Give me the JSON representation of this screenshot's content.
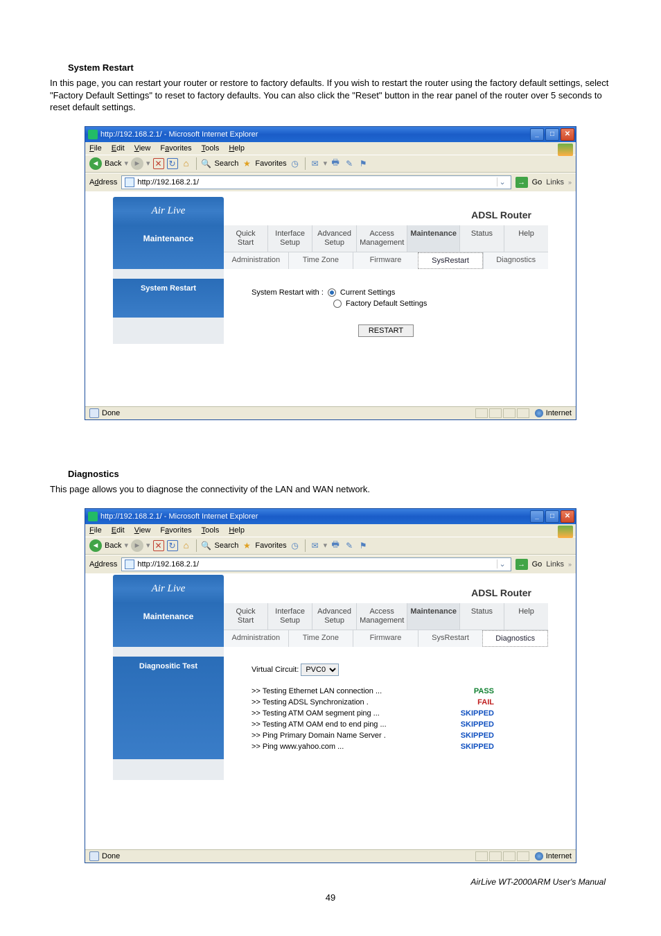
{
  "doc": {
    "section1_title": "System Restart",
    "section1_body": "In this page, you can restart your router or restore to factory defaults. If you wish to restart the router using the factory default settings, select \"Factory Default Settings\" to reset to factory defaults. You can also click the \"Reset\" button in the rear panel of the router over 5 seconds to reset default settings.",
    "section2_title": "Diagnostics",
    "section2_body": "This page allows you to diagnose the connectivity of the LAN and WAN network.",
    "footer": "AirLive WT-2000ARM User's Manual",
    "page_number": "49"
  },
  "ie": {
    "title": "http://192.168.2.1/ - Microsoft Internet Explorer",
    "menu": {
      "file": "File",
      "edit": "Edit",
      "view": "View",
      "favorites": "Favorites",
      "tools": "Tools",
      "help": "Help"
    },
    "toolbar": {
      "back": "Back",
      "search": "Search",
      "favorites": "Favorites"
    },
    "address_label": "Address",
    "address_value": "http://192.168.2.1/",
    "go": "Go",
    "links": "Links",
    "status_done": "Done",
    "status_zone": "Internet"
  },
  "router": {
    "brand": "Air Live",
    "device": "ADSL Router",
    "sidebar": "Maintenance",
    "tabs": {
      "quick_start": "Quick\nStart",
      "interface_setup": "Interface\nSetup",
      "advanced_setup": "Advanced\nSetup",
      "access_mgmt": "Access\nManagement",
      "maintenance": "Maintenance",
      "status": "Status",
      "help": "Help"
    },
    "subtabs": {
      "administration": "Administration",
      "time_zone": "Time Zone",
      "firmware": "Firmware",
      "sysrestart": "SysRestart",
      "diagnostics": "Diagnostics"
    }
  },
  "sysrestart": {
    "side_label": "System Restart",
    "label": "System Restart with :",
    "opt_current": "Current Settings",
    "opt_factory": "Factory Default Settings",
    "restart_btn": "RESTART"
  },
  "diagnostics": {
    "side_label": "Diagnositic Test",
    "vc_label": "Virtual Circuit:",
    "vc_value": "PVC0",
    "tests": [
      {
        "name": ">> Testing Ethernet LAN connection ...",
        "result": "PASS",
        "cls": "pass"
      },
      {
        "name": ">> Testing ADSL Synchronization .",
        "result": "FAIL",
        "cls": "fail"
      },
      {
        "name": ">> Testing ATM OAM segment ping ...",
        "result": "SKIPPED",
        "cls": "skipped"
      },
      {
        "name": ">> Testing ATM OAM end to end ping ...",
        "result": "SKIPPED",
        "cls": "skipped"
      },
      {
        "name": ">> Ping Primary Domain Name Server .",
        "result": "SKIPPED",
        "cls": "skipped"
      },
      {
        "name": ">> Ping www.yahoo.com ...",
        "result": "SKIPPED",
        "cls": "skipped"
      }
    ]
  },
  "colors": {
    "ie_title_bg": "#2a6dd0",
    "brand_bg": "#2f74c0",
    "pass": "#108030",
    "fail": "#c02020",
    "skipped": "#1050c0"
  }
}
